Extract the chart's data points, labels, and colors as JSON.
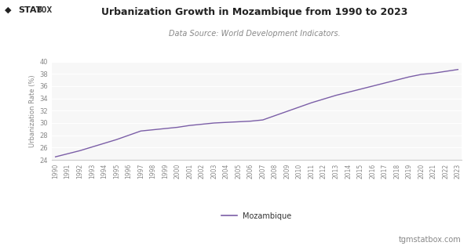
{
  "title": "Urbanization Growth in Mozambique from 1990 to 2023",
  "subtitle": "Data Source: World Development Indicators.",
  "ylabel": "Urbanization Rate (%)",
  "line_color": "#7B5EA7",
  "line_width": 1.0,
  "background_color": "#ffffff",
  "plot_bg_color": "#f7f7f7",
  "grid_color": "#ffffff",
  "ylim": [
    24,
    40
  ],
  "yticks": [
    24,
    26,
    28,
    30,
    32,
    34,
    36,
    38,
    40
  ],
  "legend_label": "Mozambique",
  "footer_text": "tgmstatbox.com",
  "years": [
    1990,
    1991,
    1992,
    1993,
    1994,
    1995,
    1996,
    1997,
    1998,
    1999,
    2000,
    2001,
    2002,
    2003,
    2004,
    2005,
    2006,
    2007,
    2008,
    2009,
    2010,
    2011,
    2012,
    2013,
    2014,
    2015,
    2016,
    2017,
    2018,
    2019,
    2020,
    2021,
    2022,
    2023
  ],
  "values": [
    24.5,
    25.0,
    25.5,
    26.1,
    26.7,
    27.3,
    28.0,
    28.7,
    28.9,
    29.1,
    29.3,
    29.6,
    29.8,
    30.0,
    30.1,
    30.2,
    30.3,
    30.5,
    31.2,
    31.9,
    32.6,
    33.3,
    33.9,
    34.5,
    35.0,
    35.5,
    36.0,
    36.5,
    37.0,
    37.5,
    37.9,
    38.1,
    38.4,
    38.7
  ]
}
